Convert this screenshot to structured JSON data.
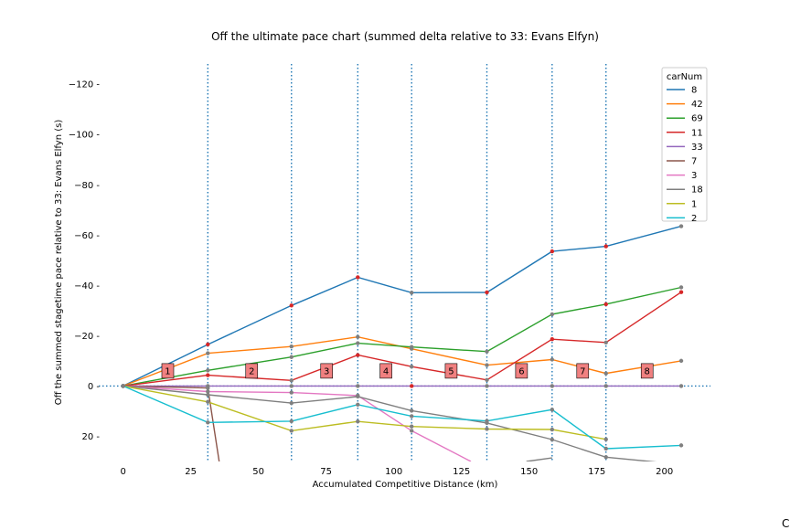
{
  "chart_data": {
    "type": "line",
    "title": "Off the ultimate pace chart (summed delta relative to 33: Evans Elfyn)",
    "xlabel": "Accumulated Competitive Distance (km)",
    "ylabel": "Off the summed stagetime pace relative to 33: Evans Elfyn (s)",
    "xlim": [
      -9,
      217
    ],
    "ylim": [
      30,
      -128
    ],
    "y_inverted": true,
    "xticks": [
      0,
      25,
      50,
      75,
      100,
      125,
      150,
      175,
      200
    ],
    "xtick_labels": [
      "0",
      "25",
      "50",
      "75",
      "100",
      "125",
      "150",
      "175",
      "200"
    ],
    "yticks": [
      -120,
      -100,
      -80,
      -60,
      -40,
      -20,
      0,
      20
    ],
    "ytick_labels": [
      "−120 -",
      "−100 -",
      "−80 -",
      "−60 -",
      "−40 -",
      "−20 -",
      "0 -",
      "20 -"
    ],
    "grid": false,
    "legend": {
      "title": "carNum",
      "placement": "upper-right",
      "entries": [
        "8",
        "42",
        "69",
        "11",
        "33",
        "7",
        "3",
        "18",
        "1",
        "2"
      ]
    },
    "stage_boundaries": [
      31.3,
      62.2,
      86.7,
      106.6,
      134.4,
      158.5,
      178.4
    ],
    "stage_labels": [
      {
        "label": "1",
        "x": 16.5
      },
      {
        "label": "2",
        "x": 47.5
      },
      {
        "label": "3",
        "x": 75.2
      },
      {
        "label": "4",
        "x": 97.1
      },
      {
        "label": "5",
        "x": 121.2
      },
      {
        "label": "6",
        "x": 147.2
      },
      {
        "label": "7",
        "x": 169.8
      },
      {
        "label": "8",
        "x": 193.6
      }
    ],
    "stage_label_y": -6,
    "series": [
      {
        "name": "8",
        "color": "#1f77b4",
        "x": [
          0,
          31.3,
          62.2,
          86.7,
          106.6,
          134.4,
          158.5,
          178.4,
          206.2
        ],
        "y": [
          0,
          -16.5,
          -32.0,
          -43.2,
          -37.1,
          -37.2,
          -53.5,
          -55.5,
          -63.5
        ],
        "markers": [
          "gray",
          "red",
          "red",
          "red",
          "gray",
          "red",
          "red",
          "red",
          "gray"
        ]
      },
      {
        "name": "42",
        "color": "#ff7f0e",
        "x": [
          0,
          31.3,
          62.2,
          86.7,
          106.6,
          134.4,
          158.5,
          178.4,
          206.2
        ],
        "y": [
          0,
          -13.0,
          -15.7,
          -19.5,
          -14.8,
          -8.3,
          -10.5,
          -5.0,
          -10.0
        ],
        "markers": [
          "gray",
          "gray",
          "gray",
          "gray",
          "gray",
          "gray",
          "gray",
          "gray",
          "gray"
        ]
      },
      {
        "name": "69",
        "color": "#2ca02c",
        "x": [
          0,
          31.3,
          62.2,
          86.7,
          106.6,
          134.4,
          158.5,
          178.4,
          206.2
        ],
        "y": [
          0,
          -6.2,
          -11.5,
          -17.0,
          -15.5,
          -13.7,
          -28.5,
          -32.5,
          -39.2
        ],
        "markers": [
          "gray",
          "gray",
          "gray",
          "gray",
          "gray",
          "gray",
          "gray",
          "red",
          "gray"
        ]
      },
      {
        "name": "11",
        "color": "#d62728",
        "x": [
          0,
          31.3,
          62.2,
          86.7,
          106.6,
          134.4,
          158.5,
          178.4,
          206.2
        ],
        "y": [
          0,
          -4.3,
          -2.2,
          -12.3,
          -7.7,
          -2.4,
          -18.6,
          -17.3,
          -37.3
        ],
        "markers": [
          "gray",
          "red",
          "gray",
          "red",
          "gray",
          "gray",
          "red",
          "gray",
          "red"
        ]
      },
      {
        "name": "33",
        "color": "#9467bd",
        "x": [
          0,
          31.3,
          62.2,
          86.7,
          106.6,
          134.4,
          158.5,
          178.4,
          206.2
        ],
        "y": [
          0,
          0,
          0,
          0,
          0,
          0,
          0,
          0,
          0
        ],
        "markers": [
          "gray",
          "gray",
          "gray",
          "gray",
          "red",
          "gray",
          "gray",
          "gray",
          "gray"
        ]
      },
      {
        "name": "7",
        "color": "#8c564b",
        "x": [
          0,
          31.3,
          35.5
        ],
        "y": [
          0,
          0.8,
          30
        ],
        "markers": [
          "gray",
          "gray",
          "none"
        ]
      },
      {
        "name": "3",
        "color": "#e377c2",
        "x": [
          0,
          31.3,
          62.2,
          86.7,
          106.6,
          128.5
        ],
        "y": [
          0,
          2.2,
          2.6,
          3.8,
          17.8,
          30
        ],
        "markers": [
          "gray",
          "gray",
          "gray",
          "gray",
          "gray",
          "none"
        ]
      },
      {
        "name": "18",
        "color": "#7f7f7f",
        "x": [
          0,
          31.3,
          62.2,
          86.7,
          106.6,
          134.4,
          158.5,
          178.4,
          206.2
        ],
        "y": [
          0,
          3.5,
          6.8,
          4.2,
          9.8,
          14.7,
          21.3,
          28.3,
          31.2
        ],
        "markers": [
          "gray",
          "gray",
          "gray",
          "gray",
          "gray",
          "gray",
          "gray",
          "gray",
          "gray"
        ]
      },
      {
        "name": "1",
        "color": "#bcbd22",
        "x": [
          0,
          31.3,
          62.2,
          86.7,
          106.6,
          134.4,
          158.5,
          178.4
        ],
        "y": [
          0,
          6.3,
          17.8,
          14.1,
          16.1,
          17.1,
          17.3,
          21.2
        ],
        "markers": [
          "gray",
          "gray",
          "gray",
          "gray",
          "gray",
          "gray",
          "gray",
          "gray"
        ]
      },
      {
        "name": "2",
        "color": "#17becf",
        "x": [
          0,
          31.3,
          62.2,
          86.7,
          106.6,
          134.4,
          158.5,
          178.4,
          206.2
        ],
        "y": [
          0,
          14.5,
          14.0,
          7.4,
          12.0,
          13.9,
          9.4,
          24.9,
          23.6
        ],
        "markers": [
          "gray",
          "gray",
          "gray",
          "gray",
          "gray",
          "gray",
          "gray",
          "gray",
          "gray"
        ]
      }
    ],
    "extra_fragments": [
      {
        "color": "#7f7f7f",
        "x": [
          149.0,
          158.5
        ],
        "y": [
          30,
          28.6
        ]
      }
    ],
    "marker_colors": {
      "gray": "#808080",
      "red": "#d62728"
    },
    "stage_label_color": "#f08080"
  },
  "page": {
    "corner_text": "C"
  }
}
